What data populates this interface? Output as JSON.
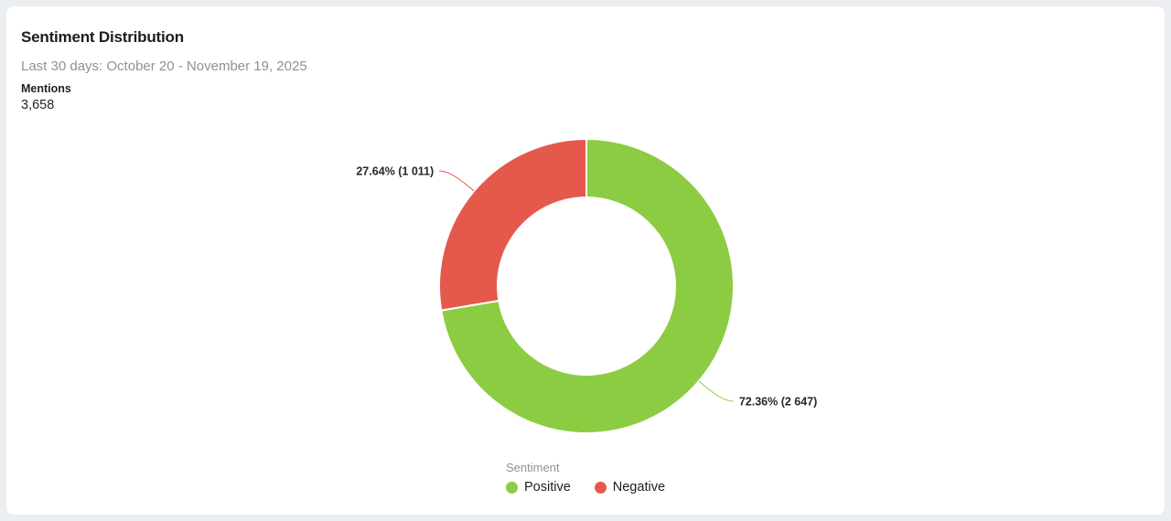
{
  "page": {
    "background": "#ECEFF2",
    "card_background": "#FFFFFF"
  },
  "chart_data": {
    "type": "pie",
    "variant": "donut",
    "title": "Sentiment Distribution",
    "subtitle": "Last 30 days: October 20 - November 19, 2025",
    "metric": {
      "label": "Mentions",
      "value": "3,658",
      "raw": 3658
    },
    "slices": [
      {
        "name": "Positive",
        "value": 2647,
        "percent": 72.36,
        "color": "#8CCC42",
        "label": "72.36% (2 647)"
      },
      {
        "name": "Negative",
        "value": 1011,
        "percent": 27.64,
        "color": "#E5594C",
        "label": "27.64% (1 011)"
      }
    ],
    "start_angle": 0,
    "direction": "clockwise",
    "inner_radius_ratio": 0.605,
    "legend": {
      "title": "Sentiment",
      "position": "bottom"
    }
  }
}
